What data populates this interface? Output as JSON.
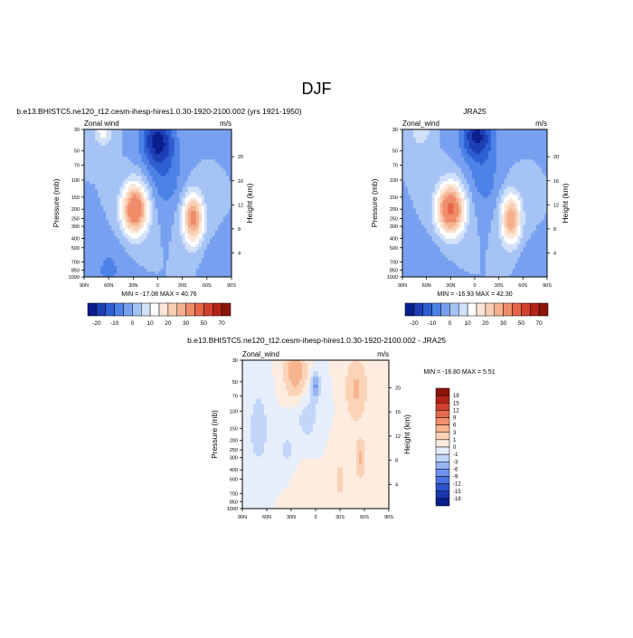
{
  "page_title": "DJF",
  "colors": {
    "full_palette": [
      "#0a1e8c",
      "#1e3fb4",
      "#2e5fd2",
      "#4d82e6",
      "#78a0f0",
      "#a5c3f5",
      "#d2e1fa",
      "#ffffff",
      "#fbe6d7",
      "#f8cfb4",
      "#f5b08e",
      "#f08c6a",
      "#e6644b",
      "#d2412f",
      "#b42318",
      "#8c1408"
    ],
    "diff_palette": [
      "#0a1e8c",
      "#1a37b0",
      "#2a52cc",
      "#4a74e2",
      "#6f93ee",
      "#97b3f4",
      "#c2d6fa",
      "#e6eefc",
      "#fdecdf",
      "#fbd3b7",
      "#f7b48f",
      "#f1906b",
      "#e66a4c",
      "#d2412f",
      "#b42318",
      "#8c1408"
    ]
  },
  "chart_data": [
    {
      "type": "heatmap",
      "title": "b.e13.BHISTC5.ne120_t12.cesm-ihesp-hires1.0.30-1920-2100.002 (yrs 1921-1950)",
      "left_label": "Zonal wind",
      "right_label": "m/s",
      "ylabel": "Pressure (mb)",
      "ylabel_right": "Height (km)",
      "x_ticks": [
        "90N",
        "60N",
        "30N",
        "0",
        "30S",
        "60S",
        "90S"
      ],
      "y_ticks": [
        "30",
        "50",
        "70",
        "100",
        "150",
        "200",
        "250",
        "300",
        "400",
        "500",
        "700",
        "850",
        "1000"
      ],
      "height_ticks": [
        "4",
        "8",
        "12",
        "16",
        "20"
      ],
      "stats": "MIN = -17.08   MAX =  40.76",
      "colorbar_labels": [
        "-20",
        "-10",
        "0",
        "10",
        "20",
        "30",
        "50",
        "70"
      ],
      "levels": [
        -20,
        -15,
        -10,
        -5,
        0,
        5,
        10,
        15,
        20,
        25,
        30,
        40,
        50,
        60,
        70
      ],
      "features": [
        {
          "lat": 28,
          "p": 200,
          "amp": 40,
          "width_lat": 11,
          "width_logp": 0.42
        },
        {
          "lat": -43,
          "p": 250,
          "amp": 33,
          "width_lat": 9,
          "width_logp": 0.42
        },
        {
          "lat": 67,
          "p": 30,
          "amp": 12,
          "width_lat": 8,
          "width_logp": 0.3
        },
        {
          "lat": 0,
          "p": 40,
          "amp": -22,
          "width_lat": 14,
          "width_logp": 0.4
        },
        {
          "lat": -10,
          "p": 100,
          "amp": -8,
          "width_lat": 15,
          "width_logp": 0.5
        },
        {
          "lat": 60,
          "p": 850,
          "amp": -6,
          "width_lat": 15,
          "width_logp": 0.5
        },
        {
          "lat": -65,
          "p": 850,
          "amp": -4,
          "width_lat": 8,
          "width_logp": 0.4
        }
      ]
    },
    {
      "type": "heatmap",
      "title": "JRA25",
      "left_label": "Zonal_wind",
      "right_label": "m/s",
      "ylabel": "Pressure (mb)",
      "ylabel_right": "Height (km)",
      "x_ticks": [
        "90N",
        "60N",
        "30N",
        "0",
        "30S",
        "60S",
        "90S"
      ],
      "y_ticks": [
        "30",
        "50",
        "70",
        "100",
        "150",
        "200",
        "250",
        "300",
        "400",
        "500",
        "700",
        "850",
        "1000"
      ],
      "height_ticks": [
        "4",
        "8",
        "12",
        "16",
        "20"
      ],
      "stats": "MIN = -16.93   MAX =  42.30",
      "colorbar_labels": [
        "-20",
        "-10",
        "0",
        "10",
        "20",
        "30",
        "50",
        "70"
      ],
      "levels": [
        -20,
        -15,
        -10,
        -5,
        0,
        5,
        10,
        15,
        20,
        25,
        30,
        40,
        50,
        60,
        70
      ],
      "features": [
        {
          "lat": 30,
          "p": 200,
          "amp": 42,
          "width_lat": 12,
          "width_logp": 0.42
        },
        {
          "lat": -45,
          "p": 250,
          "amp": 30,
          "width_lat": 9,
          "width_logp": 0.42
        },
        {
          "lat": 67,
          "p": 30,
          "amp": 10,
          "width_lat": 8,
          "width_logp": 0.3
        },
        {
          "lat": -3,
          "p": 35,
          "amp": -21,
          "width_lat": 14,
          "width_logp": 0.4
        },
        {
          "lat": -12,
          "p": 100,
          "amp": -7,
          "width_lat": 15,
          "width_logp": 0.5
        },
        {
          "lat": 60,
          "p": 850,
          "amp": -5,
          "width_lat": 15,
          "width_logp": 0.5
        },
        {
          "lat": -65,
          "p": 850,
          "amp": -4,
          "width_lat": 8,
          "width_logp": 0.4
        }
      ]
    },
    {
      "type": "heatmap",
      "title": "b.e13.BHISTC5.ne120_t12.cesm-ihesp-hires1.0.30-1920-2100.002 - JRA25",
      "left_label": "Zonal_wind",
      "right_label": "m/s",
      "ylabel": "Pressure (mb)",
      "ylabel_right": "Height (km)",
      "x_ticks": [
        "90N",
        "60N",
        "30N",
        "0",
        "30S",
        "60S",
        "90S"
      ],
      "y_ticks": [
        "30",
        "50",
        "70",
        "100",
        "150",
        "200",
        "250",
        "300",
        "400",
        "500",
        "700",
        "850",
        "1000"
      ],
      "height_ticks": [
        "4",
        "8",
        "12",
        "16",
        "20"
      ],
      "stats": "MIN = -16.80   MAX =   5.51",
      "colorbar_labels": [
        "18",
        "15",
        "12",
        "9",
        "6",
        "3",
        "1",
        "0",
        "-1",
        "-3",
        "-6",
        "-9",
        "-12",
        "-15",
        "-18"
      ],
      "levels": [
        -18,
        -15,
        -12,
        -9,
        -6,
        -3,
        -1,
        0,
        1,
        3,
        6,
        9,
        12,
        15,
        18
      ],
      "features": [
        {
          "lat": 25,
          "p": 40,
          "amp": 5,
          "width_lat": 8,
          "width_logp": 0.35
        },
        {
          "lat": 0,
          "p": 55,
          "amp": -7,
          "width_lat": 3,
          "width_logp": 0.2
        },
        {
          "lat": -50,
          "p": 60,
          "amp": 3.5,
          "width_lat": 8,
          "width_logp": 0.45
        },
        {
          "lat": -55,
          "p": 300,
          "amp": 3.5,
          "width_lat": 4,
          "width_logp": 0.3
        },
        {
          "lat": 10,
          "p": 120,
          "amp": -1.5,
          "width_lat": 10,
          "width_logp": 0.4
        },
        {
          "lat": 35,
          "p": 250,
          "amp": -1.2,
          "width_lat": 7,
          "width_logp": 0.4
        },
        {
          "lat": 70,
          "p": 150,
          "amp": -2,
          "width_lat": 8,
          "width_logp": 0.6
        },
        {
          "lat": -30,
          "p": 500,
          "amp": 1.2,
          "width_lat": 8,
          "width_logp": 0.5
        },
        {
          "lat": 15,
          "p": 700,
          "amp": 1,
          "width_lat": 10,
          "width_logp": 0.4
        }
      ]
    }
  ]
}
